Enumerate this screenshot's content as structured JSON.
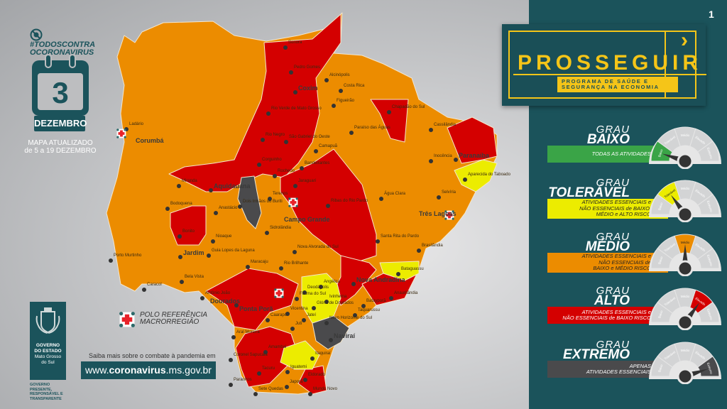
{
  "header": {
    "hashtag_line1": "#TODOSCONTRA",
    "hashtag_line2": "OCORONAVIRUS",
    "day": "3",
    "month": "DEZEMBRO",
    "updated_line1": "MAPA ATUALIZADO",
    "updated_line2": "de 5 a 19 DEZEMBRO"
  },
  "page_number": "1",
  "brand": {
    "title": "PROSSEGUIR",
    "subtitle_line1": "PROGRAMA DE SAÚDE E",
    "subtitle_line2": "SEGURANÇA NA ECONOMIA",
    "accent": "#f5c518"
  },
  "gauge_labels": [
    "Baixo",
    "Tolerável",
    "Médio",
    "Elevado",
    "Extremo"
  ],
  "levels": [
    {
      "grau": "GRAU",
      "name": "BAIXO",
      "desc": [
        "TODAS AS ATIVIDADES"
      ],
      "color": "#3aa447",
      "text_color": "#ffffff",
      "active": 0
    },
    {
      "grau": "GRAU",
      "name": "TOLERÁVEL",
      "desc": [
        "ATIVIDADES ESSENCIAIS e",
        "NÃO ESSENCIAIS de BAIXO,",
        "MÉDIO e ALTO RISCO"
      ],
      "color": "#ecec00",
      "text_color": "#222222",
      "active": 1
    },
    {
      "grau": "GRAU",
      "name": "MÉDIO",
      "desc": [
        "ATIVIDADES ESSENCIAIS e",
        "NÃO ESSENCIAIS de",
        "BAIXO e MÉDIO RISCO"
      ],
      "color": "#ec8c00",
      "text_color": "#222222",
      "active": 2
    },
    {
      "grau": "GRAU",
      "name": "ALTO",
      "desc": [
        "ATIVIDADES ESSENCIAIS e",
        "NÃO ESSENCIAIS de BAIXO RISCO"
      ],
      "color": "#d40000",
      "text_color": "#ffffff",
      "active": 3
    },
    {
      "grau": "GRAU",
      "name": "EXTREMO",
      "desc": [
        "APENAS",
        "ATIVIDADES ESSENCIAIS"
      ],
      "color": "#4a4a4c",
      "text_color": "#ffffff",
      "active": 4
    }
  ],
  "map_colors": {
    "baixo": "#3aa447",
    "toleravel": "#ecec00",
    "medio": "#ec8c00",
    "alto": "#d40000",
    "extremo": "#4a4a4c"
  },
  "cities": [
    {
      "name": "Ladário"
    },
    {
      "name": "Corumbá",
      "bold": true,
      "polo": true
    },
    {
      "name": "Sonora"
    },
    {
      "name": "Pedro Gomes"
    },
    {
      "name": "Alcinópolis"
    },
    {
      "name": "Costa Rica"
    },
    {
      "name": "Coxim",
      "bold": true
    },
    {
      "name": "Figueirão"
    },
    {
      "name": "Rio Verde de Mato Grosso"
    },
    {
      "name": "Chapadão do Sul"
    },
    {
      "name": "Cassilândia"
    },
    {
      "name": "Paraíso das Águas"
    },
    {
      "name": "Rio Negro"
    },
    {
      "name": "São Gabriel do Oeste"
    },
    {
      "name": "Camapuã"
    },
    {
      "name": "Inocência"
    },
    {
      "name": "Paranaíba",
      "bold": true
    },
    {
      "name": "Corguinho"
    },
    {
      "name": "Rochedo"
    },
    {
      "name": "Bandeirantes"
    },
    {
      "name": "Aparecida do Taboado"
    },
    {
      "name": "Jaraguari"
    },
    {
      "name": "Miranda"
    },
    {
      "name": "Aquidauana",
      "bold": true
    },
    {
      "name": "Ribas do Rio Pardo"
    },
    {
      "name": "Terenos"
    },
    {
      "name": "Dois Irmãos do Buriti"
    },
    {
      "name": "Anastácio"
    },
    {
      "name": "Bodoquena"
    },
    {
      "name": "Campo Grande",
      "bold": true,
      "polo": true
    },
    {
      "name": "Água Clara"
    },
    {
      "name": "Selvíria"
    },
    {
      "name": "Três Lagoas",
      "bold": true,
      "polo": true
    },
    {
      "name": "Sidrolândia"
    },
    {
      "name": "Bonito"
    },
    {
      "name": "Nioaque"
    },
    {
      "name": "Santa Rita do Pardo"
    },
    {
      "name": "Jardim",
      "bold": true
    },
    {
      "name": "Guia Lopes da Laguna"
    },
    {
      "name": "Nova Alvorada do Sul"
    },
    {
      "name": "Brasilândia"
    },
    {
      "name": "Maracaju"
    },
    {
      "name": "Rio Brilhante"
    },
    {
      "name": "Porto Murtinho"
    },
    {
      "name": "Bela Vista"
    },
    {
      "name": "Caracol"
    },
    {
      "name": "Bataguassu"
    },
    {
      "name": "Nova Andradina",
      "bold": true
    },
    {
      "name": "Angélica"
    },
    {
      "name": "Deodápolis"
    },
    {
      "name": "Ivinhema"
    },
    {
      "name": "Batayporã"
    },
    {
      "name": "Anaurilândia"
    },
    {
      "name": "Dourados",
      "bold": true,
      "polo": true
    },
    {
      "name": "Fátima do Sul"
    },
    {
      "name": "Vicentina"
    },
    {
      "name": "Glória de Dourados"
    },
    {
      "name": "Taquarussu"
    },
    {
      "name": "Ponta Porã",
      "bold": true
    },
    {
      "name": "Caarapó"
    },
    {
      "name": "Jateí"
    },
    {
      "name": "Novo Horizonte do Sul"
    },
    {
      "name": "Juti"
    },
    {
      "name": "Antônio João"
    },
    {
      "name": "Aral Moreira"
    },
    {
      "name": "Naviraí",
      "bold": true
    },
    {
      "name": "Amambai"
    },
    {
      "name": "Coronel Sapucaia"
    },
    {
      "name": "Itaquiraí"
    },
    {
      "name": "Iguatemi"
    },
    {
      "name": "Tacuru"
    },
    {
      "name": "Eldorado"
    },
    {
      "name": "Paranhos"
    },
    {
      "name": "Sete Quedas"
    },
    {
      "name": "Japorã"
    },
    {
      "name": "Mundo Novo"
    }
  ],
  "legend": {
    "line1": "POLO REFERÊNCIA",
    "line2": "MACRORREGIÃO"
  },
  "footer": {
    "saiba": "Saiba mais sobre o combate à pandemia em",
    "url_pre": "www.",
    "url_bold": "coronavirus",
    "url_post": ".ms.gov.br"
  },
  "government": {
    "line1": "GOVERNO",
    "line2": "DO ESTADO",
    "line3": "Mato Grosso",
    "line4": "do Sul",
    "slogan1": "GOVERNO",
    "slogan2": "PRESENTE,",
    "slogan3": "RESPONSÁVEL E",
    "slogan4": "TRANSPARENTE"
  }
}
